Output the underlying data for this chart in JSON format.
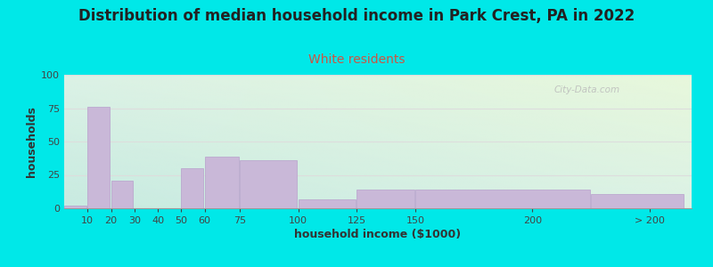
{
  "title": "Distribution of median household income in Park Crest, PA in 2022",
  "subtitle": "White residents",
  "xlabel": "household income ($1000)",
  "ylabel": "households",
  "title_fontsize": 12,
  "subtitle_fontsize": 10,
  "label_fontsize": 9,
  "tick_fontsize": 8,
  "background_outer": "#00e8e8",
  "bar_color": "#c9b8d8",
  "bar_edge_color": "#b8a0cc",
  "ylim": [
    0,
    100
  ],
  "yticks": [
    0,
    25,
    50,
    75,
    100
  ],
  "bar_values": [
    2,
    76,
    21,
    0,
    0,
    30,
    39,
    36,
    7,
    14,
    14,
    11
  ],
  "bar_lefts": [
    0,
    10,
    20,
    30,
    40,
    50,
    60,
    75,
    100,
    125,
    150,
    225
  ],
  "bar_rights": [
    10,
    20,
    30,
    40,
    50,
    60,
    75,
    100,
    125,
    150,
    225,
    265
  ],
  "xtick_labels": [
    "10",
    "20",
    "30",
    "40",
    "50",
    "60",
    "75",
    "100",
    "125",
    "150",
    "200",
    "> 200"
  ],
  "xtick_positions": [
    10,
    20,
    30,
    40,
    50,
    60,
    75,
    100,
    125,
    150,
    200,
    250
  ],
  "xlim": [
    0,
    268
  ],
  "watermark": "City-Data.com",
  "subtitle_color": "#b05050",
  "grid_color": "#dddddd",
  "title_color": "#222222"
}
